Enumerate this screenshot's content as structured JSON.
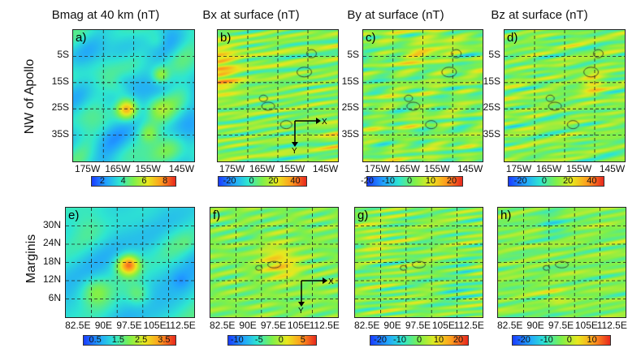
{
  "columns": [
    {
      "title": "Bmag at 40 km (nT)"
    },
    {
      "title": "Bx at surface (nT)"
    },
    {
      "title": "By at surface (nT)"
    },
    {
      "title": "Bz at surface (nT)"
    }
  ],
  "rows": [
    {
      "label": "NW of Apollo",
      "y_ticks": [
        "5S",
        "15S",
        "25S",
        "35S"
      ],
      "x_ticks": [
        "175W",
        "165W",
        "155W",
        "145W"
      ]
    },
    {
      "label": "Marginis",
      "y_ticks": [
        "30N",
        "24N",
        "18N",
        "12N",
        "6N"
      ],
      "x_ticks": [
        "82.5E",
        "90E",
        "97.5E",
        "105E",
        "112.5E"
      ]
    }
  ],
  "panels": [
    {
      "label": "a)",
      "colorbar_ticks": [
        "2",
        "4",
        "6",
        "8"
      ]
    },
    {
      "label": "b)",
      "colorbar_ticks": [
        "-20",
        "0",
        "20",
        "40"
      ],
      "axis_x": "X",
      "axis_y": "Y"
    },
    {
      "label": "c)",
      "colorbar_ticks": [
        "-20",
        "-10",
        "0",
        "10",
        "20"
      ]
    },
    {
      "label": "d)",
      "colorbar_ticks": [
        "-20",
        "0",
        "20",
        "40"
      ]
    },
    {
      "label": "e)",
      "colorbar_ticks": [
        "0.5",
        "1.5",
        "2.5",
        "3.5"
      ]
    },
    {
      "label": "f)",
      "colorbar_ticks": [
        "-10",
        "-5",
        "0",
        "5"
      ],
      "axis_x": "X",
      "axis_y": "Y"
    },
    {
      "label": "g)",
      "colorbar_ticks": [
        "-20",
        "-10",
        "0",
        "10",
        "20"
      ]
    },
    {
      "label": "h)",
      "colorbar_ticks": [
        "-20",
        "-10",
        "0",
        "10"
      ]
    }
  ],
  "chart_data": {
    "type": "heatmap",
    "colormap": [
      "#1a3cff",
      "#21a0ff",
      "#2ee6d0",
      "#7ef04a",
      "#e8e81e",
      "#ff9a1e",
      "#e8281e"
    ],
    "colorbar_ranges": [
      [
        1,
        9
      ],
      [
        -30,
        50
      ],
      [
        -20,
        25
      ],
      [
        -30,
        50
      ],
      [
        0,
        4
      ],
      [
        -12,
        8
      ],
      [
        -25,
        25
      ],
      [
        -25,
        18
      ]
    ],
    "grid": "on, dashed"
  }
}
